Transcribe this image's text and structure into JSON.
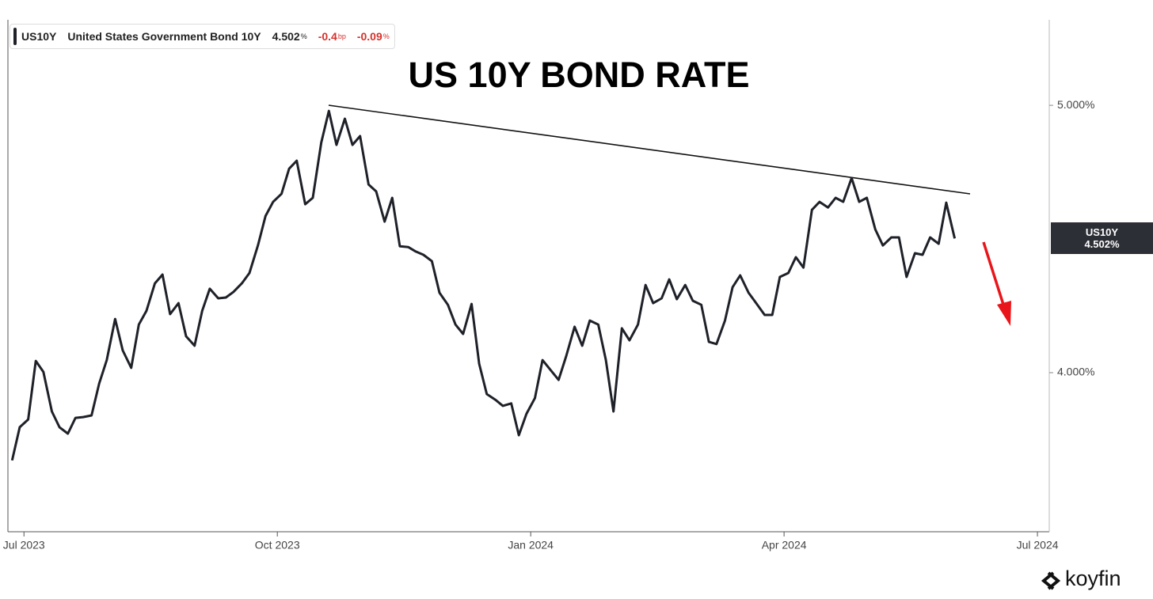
{
  "chart_data": {
    "type": "line",
    "title": "US 10Y BOND RATE",
    "header": {
      "symbol": "US10Y",
      "name": "United States Government Bond 10Y",
      "price": "4.502",
      "price_unit": "%",
      "change": "-0.4",
      "change_unit": "bp",
      "change_pct": "-0.09",
      "change_pct_unit": "%"
    },
    "last_label": {
      "name": "US10Y",
      "label": "4.502%"
    },
    "brand": "koyfin",
    "x": [
      -0.14,
      -0.05,
      0.05,
      0.14,
      0.23,
      0.33,
      0.42,
      0.52,
      0.61,
      0.7,
      0.8,
      0.89,
      0.98,
      1.08,
      1.17,
      1.27,
      1.36,
      1.45,
      1.55,
      1.64,
      1.73,
      1.83,
      1.92,
      2.02,
      2.11,
      2.2,
      2.3,
      2.39,
      2.48,
      2.58,
      2.67,
      2.77,
      2.86,
      2.95,
      3.05,
      3.14,
      3.23,
      3.33,
      3.42,
      3.52,
      3.61,
      3.7,
      3.8,
      3.89,
      3.98,
      4.08,
      4.17,
      4.27,
      4.36,
      4.45,
      4.55,
      4.64,
      4.73,
      4.83,
      4.92,
      5.02,
      5.11,
      5.2,
      5.3,
      5.39,
      5.48,
      5.58,
      5.67,
      5.77,
      5.86,
      5.95,
      6.05,
      6.14,
      6.23,
      6.33,
      6.42,
      6.52,
      6.61,
      6.7,
      6.8,
      6.89,
      6.98,
      7.08,
      7.17,
      7.27,
      7.36,
      7.45,
      7.55,
      7.64,
      7.73,
      7.83,
      7.92,
      8.02,
      8.11,
      8.2,
      8.3,
      8.39,
      8.48,
      8.58,
      8.67,
      8.77,
      8.86,
      8.95,
      9.05,
      9.14,
      9.23,
      9.33,
      9.42,
      9.52,
      9.61,
      9.7,
      9.8,
      9.89,
      9.98,
      10.08,
      10.17,
      10.27,
      10.36,
      10.45,
      10.55,
      10.64,
      10.73,
      10.83,
      10.92,
      11.02
    ],
    "series": [
      {
        "name": "US10Y",
        "color": "#1f2129",
        "values": [
          3.672,
          3.796,
          3.825,
          4.044,
          4.003,
          3.855,
          3.796,
          3.772,
          3.831,
          3.834,
          3.84,
          3.959,
          4.047,
          4.201,
          4.083,
          4.018,
          4.18,
          4.231,
          4.334,
          4.367,
          4.219,
          4.26,
          4.136,
          4.101,
          4.231,
          4.314,
          4.278,
          4.281,
          4.302,
          4.334,
          4.373,
          4.476,
          4.586,
          4.639,
          4.669,
          4.763,
          4.793,
          4.63,
          4.654,
          4.861,
          4.979,
          4.852,
          4.95,
          4.852,
          4.885,
          4.704,
          4.678,
          4.565,
          4.654,
          4.473,
          4.47,
          4.453,
          4.441,
          4.417,
          4.299,
          4.254,
          4.18,
          4.145,
          4.257,
          4.033,
          3.92,
          3.899,
          3.876,
          3.885,
          3.766,
          3.846,
          3.905,
          4.047,
          4.012,
          3.973,
          4.062,
          4.172,
          4.101,
          4.195,
          4.18,
          4.047,
          3.855,
          4.166,
          4.121,
          4.18,
          4.328,
          4.26,
          4.278,
          4.349,
          4.275,
          4.328,
          4.269,
          4.254,
          4.115,
          4.107,
          4.195,
          4.32,
          4.364,
          4.299,
          4.26,
          4.216,
          4.216,
          4.358,
          4.373,
          4.432,
          4.393,
          4.609,
          4.639,
          4.618,
          4.654,
          4.639,
          4.728,
          4.639,
          4.654,
          4.536,
          4.476,
          4.506,
          4.506,
          4.358,
          4.447,
          4.441,
          4.506,
          4.482,
          4.636,
          4.502
        ]
      }
    ],
    "xlim": [
      -0.19,
      12.14
    ],
    "xticks": [
      {
        "value": 0,
        "label": "Jul 2023"
      },
      {
        "value": 3,
        "label": "Oct 2023"
      },
      {
        "value": 6,
        "label": "Jan 2024"
      },
      {
        "value": 9,
        "label": "Apr 2024"
      },
      {
        "value": 12,
        "label": "Jul 2024"
      }
    ],
    "ylim": [
      3.405,
      5.32
    ],
    "yticks": [
      {
        "value": 4,
        "label": "4.000%"
      },
      {
        "value": 5,
        "label": "5.000%"
      }
    ],
    "grid": false
  }
}
